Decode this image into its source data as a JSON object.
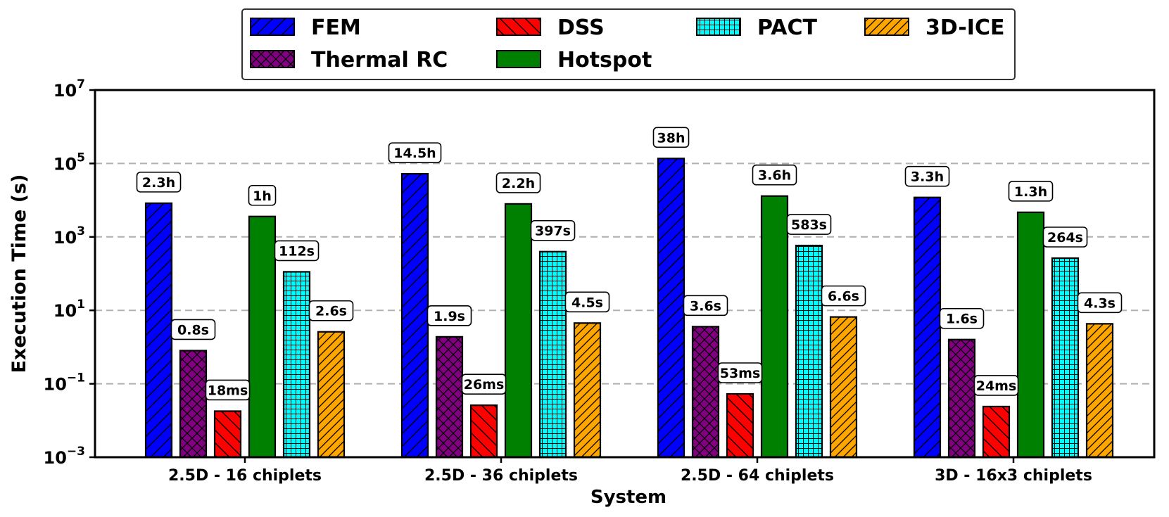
{
  "chart_data": {
    "type": "bar",
    "scale": "log",
    "xlabel": "System",
    "ylabel": "Execution Time (s)",
    "ylim": [
      0.001,
      10000000
    ],
    "yticks": [
      {
        "value": 0.001,
        "base": "10",
        "exp": "−3"
      },
      {
        "value": 0.1,
        "base": "10",
        "exp": "−1"
      },
      {
        "value": 10,
        "base": "10",
        "exp": "1"
      },
      {
        "value": 1000,
        "base": "10",
        "exp": "3"
      },
      {
        "value": 100000,
        "base": "10",
        "exp": "5"
      },
      {
        "value": 10000000,
        "base": "10",
        "exp": "7"
      }
    ],
    "grid": true,
    "legend_position": "top-center",
    "categories": [
      "2.5D - 16 chiplets",
      "2.5D - 36 chiplets",
      "2.5D - 64 chiplets",
      "3D - 16x3 chiplets"
    ],
    "series": [
      {
        "name": "FEM",
        "color": "#0000ff",
        "pattern": "hatch-fwd",
        "values": [
          8280,
          52200,
          136800,
          11880
        ],
        "labels": [
          "2.3h",
          "14.5h",
          "38h",
          "3.3h"
        ]
      },
      {
        "name": "Thermal RC",
        "color": "#800080",
        "pattern": "crosshatch",
        "values": [
          0.8,
          1.9,
          3.6,
          1.6
        ],
        "labels": [
          "0.8s",
          "1.9s",
          "3.6s",
          "1.6s"
        ]
      },
      {
        "name": "DSS",
        "color": "#ff0000",
        "pattern": "hatch-back",
        "values": [
          0.018,
          0.026,
          0.053,
          0.024
        ],
        "labels": [
          "18ms",
          "26ms",
          "53ms",
          "24ms"
        ]
      },
      {
        "name": "Hotspot",
        "color": "#008000",
        "pattern": "none",
        "values": [
          3600,
          7920,
          12960,
          4680
        ],
        "labels": [
          "1h",
          "2.2h",
          "3.6h",
          "1.3h"
        ]
      },
      {
        "name": "PACT",
        "color": "#00ffff",
        "pattern": "grid",
        "values": [
          112,
          397,
          583,
          264
        ],
        "labels": [
          "112s",
          "397s",
          "583s",
          "264s"
        ]
      },
      {
        "name": "3D-ICE",
        "color": "#ffa500",
        "pattern": "hatch-fwd-dense",
        "values": [
          2.6,
          4.5,
          6.6,
          4.3
        ],
        "labels": [
          "2.6s",
          "4.5s",
          "6.6s",
          "4.3s"
        ]
      }
    ],
    "legend_order": [
      0,
      2,
      4,
      5,
      1,
      3
    ]
  }
}
